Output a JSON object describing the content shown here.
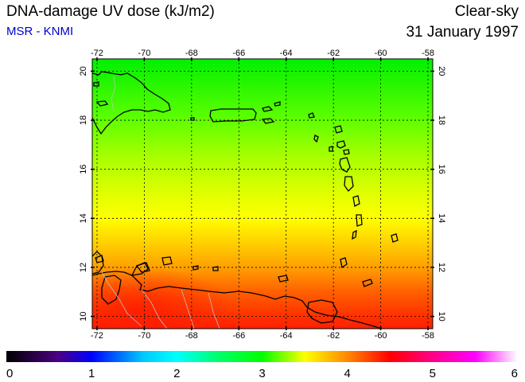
{
  "header": {
    "title": "DNA-damage UV dose (kJ/m2)",
    "source": "MSR - KNMI",
    "sky_condition": "Clear-sky",
    "date": "31 January 1997"
  },
  "map": {
    "lon_range": [
      -72.2,
      -57.8
    ],
    "lat_range": [
      9.5,
      20.5
    ],
    "lon_ticks": [
      "-72",
      "-70",
      "-68",
      "-66",
      "-64",
      "-62",
      "-60",
      "-58"
    ],
    "lat_ticks": [
      "10",
      "12",
      "14",
      "16",
      "18",
      "20"
    ],
    "grid": true,
    "coastline_color": "#000000",
    "border_color": "#bbbbbb"
  },
  "colorbar": {
    "min": 0,
    "max": 6,
    "tick_labels": [
      "0",
      "1",
      "2",
      "3",
      "4",
      "5",
      "6"
    ],
    "stops": [
      {
        "value": 0,
        "color": "#000000"
      },
      {
        "value": 0.6,
        "color": "#4b0082"
      },
      {
        "value": 1.0,
        "color": "#0000ff"
      },
      {
        "value": 1.6,
        "color": "#00c8ff"
      },
      {
        "value": 2.0,
        "color": "#00ffff"
      },
      {
        "value": 2.5,
        "color": "#00ff66"
      },
      {
        "value": 3.0,
        "color": "#00ff00"
      },
      {
        "value": 3.5,
        "color": "#ffff00"
      },
      {
        "value": 4.0,
        "color": "#ff8800"
      },
      {
        "value": 4.5,
        "color": "#ff0000"
      },
      {
        "value": 5.0,
        "color": "#ff0088"
      },
      {
        "value": 5.5,
        "color": "#ff00ff"
      },
      {
        "value": 6.0,
        "color": "#ffffff"
      }
    ]
  },
  "field_gradient": [
    {
      "lat": 20.5,
      "color": "#00f000"
    },
    {
      "lat": 18.0,
      "color": "#60ff00"
    },
    {
      "lat": 16.5,
      "color": "#a8ff00"
    },
    {
      "lat": 15.0,
      "color": "#e0ff00"
    },
    {
      "lat": 14.0,
      "color": "#ffff00"
    },
    {
      "lat": 13.0,
      "color": "#ffd000"
    },
    {
      "lat": 12.0,
      "color": "#ffa000"
    },
    {
      "lat": 11.0,
      "color": "#ff6000"
    },
    {
      "lat": 10.0,
      "color": "#ff3000"
    },
    {
      "lat": 9.5,
      "color": "#ff2000"
    }
  ]
}
